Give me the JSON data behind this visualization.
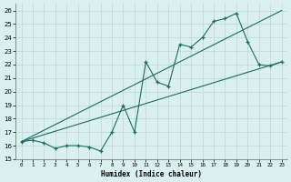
{
  "xlabel": "Humidex (Indice chaleur)",
  "xlim": [
    -0.5,
    23.5
  ],
  "ylim": [
    15,
    26.5
  ],
  "yticks": [
    15,
    16,
    17,
    18,
    19,
    20,
    21,
    22,
    23,
    24,
    25,
    26
  ],
  "xticks": [
    0,
    1,
    2,
    3,
    4,
    5,
    6,
    7,
    8,
    9,
    10,
    11,
    12,
    13,
    14,
    15,
    16,
    17,
    18,
    19,
    20,
    21,
    22,
    23
  ],
  "bg_color": "#daf0ef",
  "grid_color": "#b8d8d6",
  "line_color": "#1d6b61",
  "series_main": {
    "x": [
      0,
      1,
      2,
      3,
      4,
      5,
      6,
      7,
      8,
      9,
      10,
      11,
      12,
      13,
      14,
      15,
      16,
      17,
      18,
      19,
      20,
      21,
      22,
      23
    ],
    "y": [
      16.3,
      16.4,
      16.2,
      15.8,
      16.0,
      16.0,
      15.9,
      15.6,
      17.0,
      19.0,
      17.0,
      22.2,
      20.7,
      20.4,
      23.5,
      23.3,
      24.0,
      25.2,
      25.4,
      25.8,
      23.7,
      22.0,
      21.9,
      22.2
    ]
  },
  "series_line1": {
    "x": [
      0,
      23
    ],
    "y": [
      16.3,
      26.0
    ]
  },
  "series_line2": {
    "x": [
      0,
      23
    ],
    "y": [
      16.3,
      22.2
    ]
  }
}
